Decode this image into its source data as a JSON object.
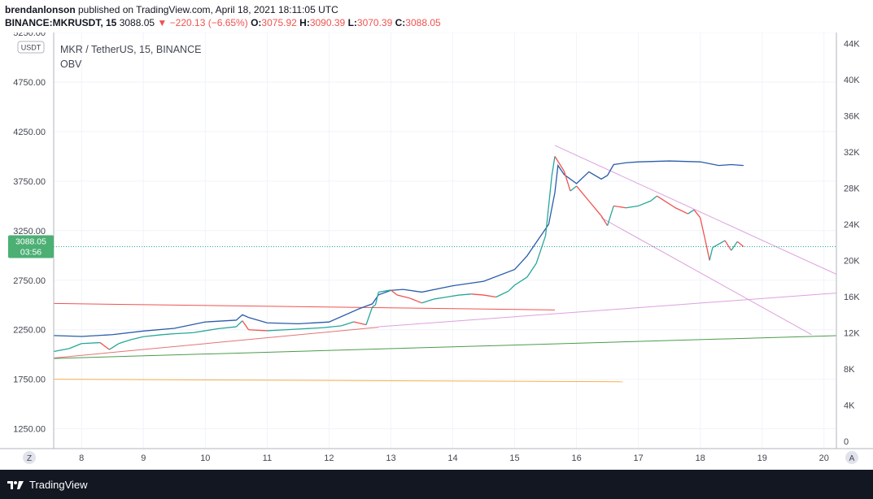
{
  "header": {
    "author": "brendanlonson",
    "published_text": " published on TradingView.com, April 18, 2021 18:11:05 UTC",
    "symbol": "BINANCE:MKRUSDT, 15",
    "last": "3088.05",
    "change": "−220.13 (−6.65%)",
    "o_label": "O:",
    "o_val": "3075.92",
    "h_label": "H:",
    "h_val": "3090.39",
    "l_label": "L:",
    "l_val": "3070.39",
    "c_label": "C:",
    "c_val": "3088.05"
  },
  "legend": {
    "title": "MKR / TetherUS, 15, BINANCE",
    "indicator": "OBV"
  },
  "currency_badge": "USDT",
  "price_badge": {
    "price": "3088.05",
    "countdown": "03:56"
  },
  "corner_left": "Z",
  "corner_right": "A",
  "footer": {
    "brand": "TradingView"
  },
  "colors": {
    "up": "#26a69a",
    "down": "#ef5350",
    "obv": "#2a5caa",
    "badge": "#4caf74"
  },
  "chart_data": {
    "type": "line",
    "x_ticks": [
      "8",
      "9",
      "10",
      "11",
      "12",
      "13",
      "14",
      "15",
      "16",
      "17",
      "18",
      "19",
      "20"
    ],
    "x_range": [
      7.55,
      20.2
    ],
    "y_left": {
      "ticks": [
        "5250.00",
        "4750.00",
        "4250.00",
        "3750.00",
        "3250.00",
        "2750.00",
        "2250.00",
        "1750.00",
        "1250.00"
      ],
      "range": [
        1050,
        5250
      ]
    },
    "y_right": {
      "ticks": [
        "44K",
        "40K",
        "36K",
        "32K",
        "28K",
        "24K",
        "20K",
        "16K",
        "12K",
        "8K",
        "4K",
        "0"
      ],
      "range": [
        -800,
        45200
      ]
    },
    "series": [
      {
        "name": "MKR / TetherUS",
        "axis": "left",
        "x": [
          7.55,
          7.8,
          8.0,
          8.3,
          8.45,
          8.6,
          8.8,
          9.0,
          9.3,
          9.5,
          9.8,
          10.0,
          10.2,
          10.5,
          10.6,
          10.7,
          11.0,
          11.3,
          11.6,
          11.9,
          12.2,
          12.4,
          12.6,
          12.7,
          12.75,
          12.8,
          13.0,
          13.1,
          13.3,
          13.5,
          13.7,
          13.9,
          14.1,
          14.3,
          14.5,
          14.7,
          14.9,
          15.0,
          15.2,
          15.35,
          15.5,
          15.6,
          15.65,
          15.7,
          15.8,
          15.9,
          16.0,
          16.2,
          16.4,
          16.5,
          16.6,
          16.8,
          17.0,
          17.2,
          17.3,
          17.5,
          17.6,
          17.8,
          17.9,
          18.0,
          18.1,
          18.15,
          18.2,
          18.4,
          18.5,
          18.6,
          18.7
        ],
        "values": [
          2030,
          2060,
          2110,
          2120,
          2050,
          2110,
          2150,
          2180,
          2200,
          2210,
          2220,
          2240,
          2260,
          2280,
          2340,
          2250,
          2240,
          2250,
          2260,
          2270,
          2290,
          2330,
          2300,
          2480,
          2500,
          2630,
          2650,
          2600,
          2570,
          2520,
          2560,
          2580,
          2600,
          2610,
          2600,
          2580,
          2640,
          2700,
          2780,
          2920,
          3200,
          3800,
          4000,
          3950,
          3850,
          3650,
          3700,
          3550,
          3400,
          3300,
          3500,
          3480,
          3500,
          3550,
          3600,
          3520,
          3480,
          3420,
          3460,
          3380,
          3100,
          2950,
          3080,
          3150,
          3050,
          3140,
          3088
        ]
      },
      {
        "name": "OBV",
        "axis": "right",
        "x": [
          7.55,
          8.0,
          8.5,
          9.0,
          9.5,
          10.0,
          10.5,
          10.6,
          10.7,
          11.0,
          11.5,
          12.0,
          12.5,
          12.7,
          12.8,
          13.0,
          13.2,
          13.5,
          14.0,
          14.5,
          15.0,
          15.2,
          15.4,
          15.55,
          15.65,
          15.7,
          15.8,
          16.0,
          16.2,
          16.4,
          16.5,
          16.6,
          16.8,
          17.0,
          17.5,
          18.0,
          18.3,
          18.5,
          18.7
        ],
        "values": [
          11700,
          11600,
          11800,
          12200,
          12500,
          13200,
          13400,
          14000,
          13700,
          13100,
          13000,
          13200,
          14700,
          15200,
          16200,
          16700,
          16800,
          16500,
          17200,
          17700,
          19000,
          20500,
          22500,
          24000,
          27500,
          30500,
          29500,
          28500,
          29800,
          29000,
          29400,
          30600,
          30800,
          30900,
          31000,
          30900,
          30500,
          30600,
          30500
        ]
      }
    ],
    "trend_lines": [
      {
        "axis": "left",
        "x": [
          7.55,
          12.8
        ],
        "y": [
          1965,
          2275
        ]
      },
      {
        "axis": "left",
        "x": [
          7.55,
          20.2
        ],
        "y": [
          1960,
          2190
        ]
      },
      {
        "axis": "left",
        "x": [
          7.55,
          16.75
        ],
        "y": [
          1750,
          1725
        ]
      },
      {
        "axis": "left",
        "x": [
          7.55,
          15.65
        ],
        "y": [
          2515,
          2450
        ]
      },
      {
        "axis": "left",
        "x": [
          12.8,
          20.2
        ],
        "y": [
          2280,
          2620
        ]
      },
      {
        "axis": "left",
        "x": [
          15.65,
          20.2
        ],
        "y": [
          4110,
          2810
        ]
      },
      {
        "axis": "left",
        "x": [
          16.4,
          19.8
        ],
        "y": [
          3380,
          2200
        ]
      }
    ],
    "current_price_line": 3088.05,
    "grid": true
  }
}
